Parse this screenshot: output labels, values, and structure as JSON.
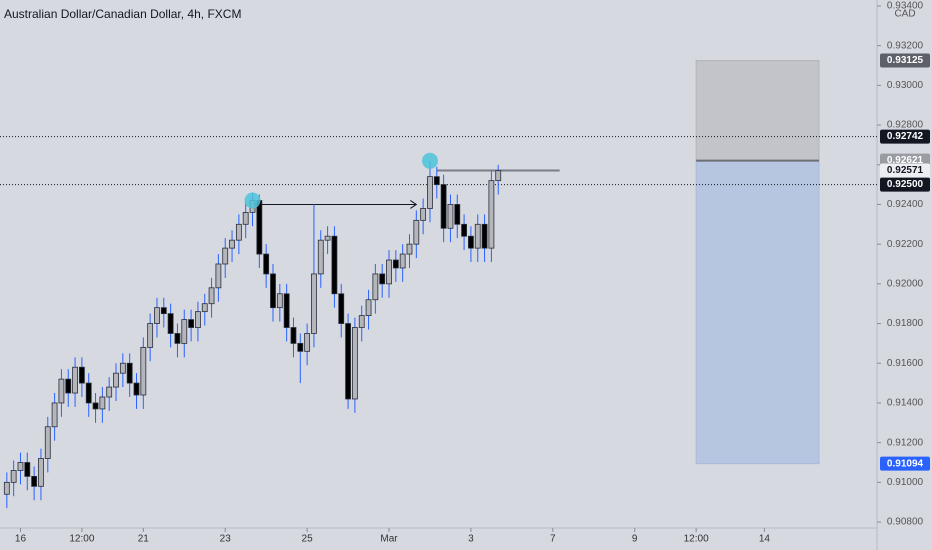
{
  "chart_data": {
    "type": "candlestick",
    "title": "Australian Dollar/Canadian Dollar, 4h, FXCM",
    "currency": "CAD",
    "x": [
      1,
      2,
      3,
      4,
      5,
      6,
      7,
      8,
      9,
      10,
      11,
      12,
      13,
      14,
      15,
      16,
      17,
      18,
      19,
      20,
      21,
      22,
      23,
      24,
      25,
      26,
      27,
      28,
      29,
      30,
      31,
      32,
      33,
      34,
      35,
      36,
      37,
      38,
      39,
      40,
      41,
      42,
      43,
      44,
      45,
      46,
      47,
      48,
      49,
      50,
      51,
      52,
      53,
      54,
      55,
      56,
      57,
      58,
      59,
      60,
      61,
      62,
      63,
      64,
      65,
      66,
      67,
      68,
      69,
      70,
      71,
      72,
      73
    ],
    "open": [
      0.9094,
      0.91,
      0.9106,
      0.911,
      0.9103,
      0.9098,
      0.9112,
      0.9128,
      0.914,
      0.9152,
      0.9145,
      0.9158,
      0.915,
      0.914,
      0.9137,
      0.9143,
      0.9148,
      0.9155,
      0.916,
      0.915,
      0.9144,
      0.9168,
      0.918,
      0.9188,
      0.9185,
      0.9175,
      0.917,
      0.9182,
      0.9178,
      0.9186,
      0.919,
      0.9198,
      0.921,
      0.9218,
      0.9222,
      0.923,
      0.9236,
      0.9242,
      0.9215,
      0.9205,
      0.9188,
      0.9195,
      0.9178,
      0.917,
      0.9166,
      0.9175,
      0.9205,
      0.9222,
      0.9224,
      0.9195,
      0.918,
      0.9142,
      0.9178,
      0.9184,
      0.9192,
      0.9205,
      0.92,
      0.9212,
      0.9208,
      0.9215,
      0.922,
      0.9232,
      0.9238,
      0.9254,
      0.925,
      0.9228,
      0.924,
      0.923,
      0.9224,
      0.9218,
      0.923,
      0.9218,
      0.9252
    ],
    "high": [
      0.9105,
      0.9111,
      0.9115,
      0.9115,
      0.9108,
      0.9117,
      0.9133,
      0.9145,
      0.9157,
      0.9157,
      0.9163,
      0.9163,
      0.9155,
      0.9145,
      0.9148,
      0.9153,
      0.916,
      0.9165,
      0.9165,
      0.9155,
      0.9173,
      0.9185,
      0.9193,
      0.9193,
      0.919,
      0.918,
      0.9187,
      0.9187,
      0.9191,
      0.9195,
      0.9203,
      0.9215,
      0.9223,
      0.9227,
      0.9235,
      0.9241,
      0.9246,
      0.9245,
      0.922,
      0.921,
      0.92,
      0.92,
      0.9183,
      0.9175,
      0.918,
      0.924,
      0.9227,
      0.9229,
      0.9229,
      0.92,
      0.9185,
      0.9183,
      0.9189,
      0.9197,
      0.921,
      0.921,
      0.9217,
      0.9217,
      0.922,
      0.9225,
      0.9237,
      0.9243,
      0.9262,
      0.9259,
      0.9255,
      0.9245,
      0.9245,
      0.9235,
      0.9229,
      0.9235,
      0.9235,
      0.9257,
      0.926
    ],
    "low": [
      0.9087,
      0.9093,
      0.9099,
      0.9096,
      0.9091,
      0.9091,
      0.9105,
      0.9121,
      0.9133,
      0.9138,
      0.9138,
      0.9143,
      0.9133,
      0.913,
      0.913,
      0.9136,
      0.9141,
      0.9148,
      0.9143,
      0.9137,
      0.9137,
      0.9161,
      0.9173,
      0.9178,
      0.9168,
      0.9163,
      0.9163,
      0.9171,
      0.9171,
      0.9179,
      0.9183,
      0.9191,
      0.9203,
      0.9211,
      0.9215,
      0.9223,
      0.9229,
      0.9208,
      0.9198,
      0.9181,
      0.9181,
      0.9171,
      0.9163,
      0.915,
      0.9159,
      0.9168,
      0.9198,
      0.9215,
      0.9188,
      0.9173,
      0.9137,
      0.9135,
      0.9171,
      0.9177,
      0.9185,
      0.9193,
      0.9193,
      0.9201,
      0.9201,
      0.9208,
      0.9213,
      0.9225,
      0.9231,
      0.9243,
      0.9221,
      0.9221,
      0.9223,
      0.9217,
      0.9211,
      0.9211,
      0.9211,
      0.9211,
      0.9245
    ],
    "close": [
      0.91,
      0.9106,
      0.911,
      0.9103,
      0.9098,
      0.9112,
      0.9128,
      0.914,
      0.9152,
      0.9145,
      0.9158,
      0.915,
      0.914,
      0.9137,
      0.9143,
      0.9148,
      0.9155,
      0.916,
      0.915,
      0.9144,
      0.9168,
      0.918,
      0.9188,
      0.9185,
      0.9175,
      0.917,
      0.9182,
      0.9178,
      0.9186,
      0.919,
      0.9198,
      0.921,
      0.9218,
      0.9222,
      0.923,
      0.9236,
      0.9242,
      0.9215,
      0.9205,
      0.9188,
      0.9195,
      0.9178,
      0.917,
      0.9166,
      0.9175,
      0.9205,
      0.9222,
      0.9224,
      0.9195,
      0.918,
      0.9142,
      0.9178,
      0.9184,
      0.9192,
      0.9205,
      0.92,
      0.9212,
      0.9208,
      0.9215,
      0.922,
      0.9232,
      0.9238,
      0.9254,
      0.925,
      0.9228,
      0.924,
      0.923,
      0.9224,
      0.9218,
      0.923,
      0.9218,
      0.9252,
      0.9257
    ],
    "up_color": "#b4b6bc",
    "down_color": "#000000",
    "wick_color": "#2962ff",
    "xlim": [
      0,
      128.5
    ],
    "xticks": [
      {
        "value": 3,
        "label": "16"
      },
      {
        "value": 12,
        "label": "12:00"
      },
      {
        "value": 21,
        "label": "21"
      },
      {
        "value": 33,
        "label": "23"
      },
      {
        "value": 45,
        "label": "25"
      },
      {
        "value": 57,
        "label": "Mar"
      },
      {
        "value": 69,
        "label": "3"
      },
      {
        "value": 81,
        "label": "7"
      },
      {
        "value": 93,
        "label": "9"
      },
      {
        "value": 102,
        "label": "12:00"
      },
      {
        "value": 112,
        "label": "14"
      }
    ],
    "ylim": [
      0.9077,
      0.9343
    ],
    "yticks": [
      {
        "value": 0.908,
        "label": "0.90800"
      },
      {
        "value": 0.91,
        "label": "0.91000"
      },
      {
        "value": 0.912,
        "label": "0.91200"
      },
      {
        "value": 0.914,
        "label": "0.91400"
      },
      {
        "value": 0.916,
        "label": "0.91600"
      },
      {
        "value": 0.918,
        "label": "0.91800"
      },
      {
        "value": 0.92,
        "label": "0.92000"
      },
      {
        "value": 0.922,
        "label": "0.92200"
      },
      {
        "value": 0.924,
        "label": "0.92400"
      },
      {
        "value": 0.926,
        "label": "0.92600"
      },
      {
        "value": 0.928,
        "label": "0.92800"
      },
      {
        "value": 0.93,
        "label": "0.93000"
      },
      {
        "value": 0.932,
        "label": "0.93200"
      },
      {
        "value": 0.934,
        "label": "0.93400"
      }
    ],
    "levels": [
      {
        "value": 0.92742,
        "label": "0.92742"
      },
      {
        "value": 0.925,
        "label": "0.92500"
      }
    ],
    "last_price": {
      "value": 0.92571,
      "label": "0.92571",
      "x": [
        64,
        82
      ]
    },
    "position": {
      "x": [
        102,
        120
      ],
      "target": {
        "value": 0.93125,
        "label": "0.93125"
      },
      "entry": {
        "value": 0.92621,
        "label": "0.92621"
      },
      "stop": {
        "value": 0.91094,
        "label": "0.91094"
      }
    },
    "markers": [
      {
        "x": 37,
        "y": 0.9242
      },
      {
        "x": 63,
        "y": 0.9262
      }
    ],
    "arrow": {
      "x": [
        37,
        61
      ],
      "y": 0.924
    }
  }
}
